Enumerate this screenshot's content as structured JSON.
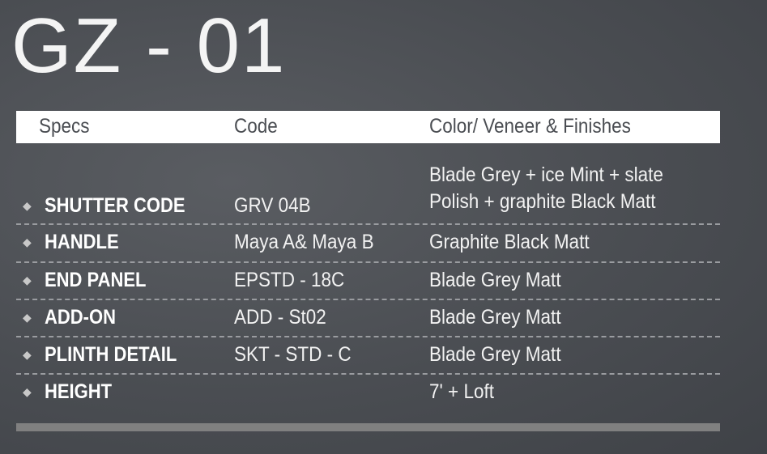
{
  "title": "GZ - 01",
  "table": {
    "headers": [
      "Specs",
      "Code",
      "Color/ Veneer & Finishes"
    ],
    "rows": [
      {
        "spec": "SHUTTER CODE",
        "code": "GRV 04B",
        "color_lines": [
          "Blade Grey + ice Mint + slate",
          "Polish + graphite Black Matt"
        ]
      },
      {
        "spec": "HANDLE",
        "code": "Maya A& Maya B",
        "color": "Graphite Black Matt"
      },
      {
        "spec": "END PANEL",
        "code": "EPSTD - 18C",
        "color": "Blade Grey Matt"
      },
      {
        "spec": "ADD-ON",
        "code": "ADD - St02",
        "color": "Blade Grey Matt"
      },
      {
        "spec": "PLINTH DETAIL",
        "code": "SKT - STD - C",
        "color": "Blade Grey Matt"
      },
      {
        "spec": "HEIGHT",
        "code": "",
        "color": "7' + Loft"
      }
    ]
  },
  "colors": {
    "background": "#4a4d52",
    "header_bg": "#ffffff",
    "bottom_bar": "#808080"
  }
}
